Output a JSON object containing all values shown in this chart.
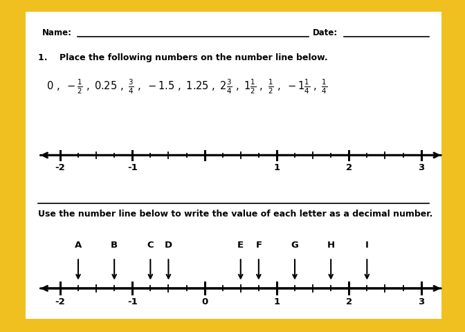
{
  "bg_color": "#F0C020",
  "panel_color": "#FFFFFF",
  "name_label": "Name:",
  "date_label": "Date:",
  "question1": "1.    Place the following numbers on the number line below.",
  "question2": "Use the number line below to write the value of each letter as a decimal number.",
  "major_ticks": [
    -2,
    -1,
    0,
    1,
    2,
    3
  ],
  "letters": [
    "A",
    "B",
    "C",
    "D",
    "E",
    "F",
    "G",
    "H",
    "I"
  ],
  "letter_positions": [
    -1.75,
    -1.25,
    -0.75,
    -0.5,
    0.5,
    0.75,
    1.25,
    1.75,
    2.25
  ],
  "frac_str": "$0\\ ,\\ -\\frac{1}{2}\\ ,\\ 0.25\\ ,\\ \\frac{3}{4}\\ ,\\ -1.5\\ ,\\ 1.25\\ ,\\ 2\\frac{3}{4}\\ ,\\ 1\\frac{1}{2}\\ ,\\ \\frac{1}{2}\\ ,\\ -1\\frac{1}{4}\\ ,\\ \\frac{1}{4}$"
}
